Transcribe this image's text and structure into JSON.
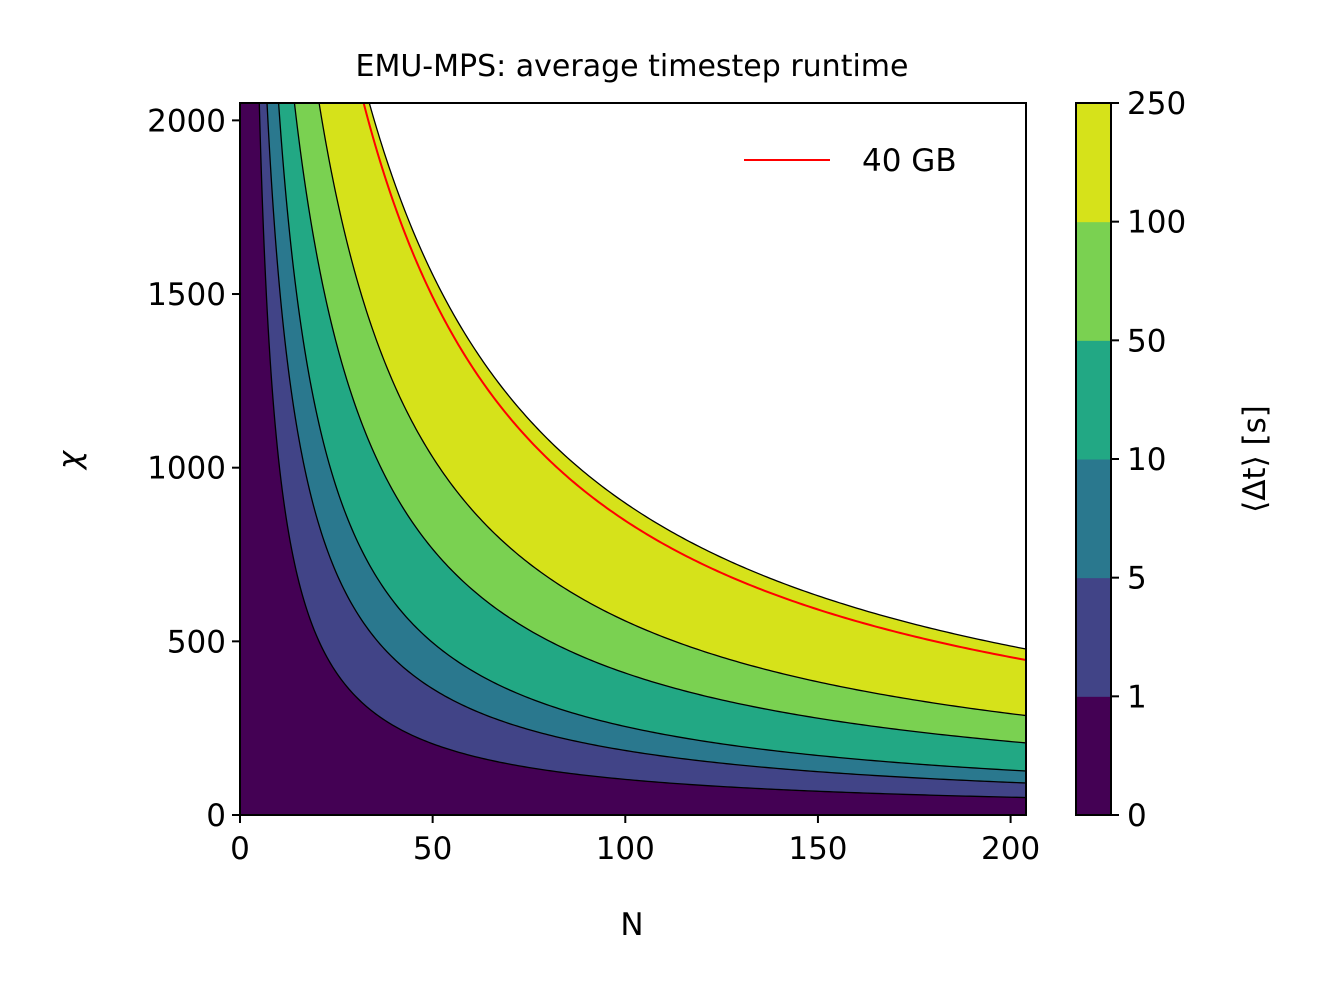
{
  "chart_data": {
    "type": "contour",
    "title": "EMU-MPS: average timestep runtime",
    "xlabel": "N",
    "ylabel": "χ",
    "xlim": [
      0,
      204
    ],
    "ylim": [
      0,
      2050
    ],
    "xticks": [
      0,
      50,
      100,
      150,
      200
    ],
    "yticks": [
      0,
      500,
      1000,
      1500,
      2000
    ],
    "colorbar": {
      "label": "⟨Δt⟩ [s]",
      "levels": [
        "0",
        "1",
        "5",
        "10",
        "50",
        "100",
        "250"
      ],
      "colors": [
        "#440154",
        "#414487",
        "#2a788e",
        "#22a884",
        "#7ad151",
        "#d6e21a"
      ]
    },
    "contour_boundaries": [
      {
        "level": "1",
        "chi_at_N": [
          [
            5,
            2050
          ],
          [
            50,
            212
          ],
          [
            100,
            105
          ],
          [
            150,
            70
          ],
          [
            204,
            46
          ]
        ]
      },
      {
        "level": "5",
        "chi_at_N": [
          [
            7,
            2050
          ],
          [
            50,
            380
          ],
          [
            100,
            190
          ],
          [
            150,
            127
          ],
          [
            204,
            88
          ]
        ]
      },
      {
        "level": "10",
        "chi_at_N": [
          [
            10,
            2050
          ],
          [
            50,
            510
          ],
          [
            100,
            255
          ],
          [
            150,
            170
          ],
          [
            204,
            125
          ]
        ]
      },
      {
        "level": "50",
        "chi_at_N": [
          [
            14,
            2050
          ],
          [
            50,
            800
          ],
          [
            100,
            412
          ],
          [
            150,
            275
          ],
          [
            204,
            205
          ]
        ]
      },
      {
        "level": "100",
        "chi_at_N": [
          [
            20,
            2050
          ],
          [
            50,
            1110
          ],
          [
            100,
            560
          ],
          [
            150,
            375
          ],
          [
            204,
            280
          ]
        ]
      },
      {
        "level": "250",
        "chi_at_N": [
          [
            30,
            2050
          ],
          [
            50,
            1780
          ],
          [
            100,
            900
          ],
          [
            150,
            610
          ],
          [
            204,
            470
          ]
        ]
      }
    ],
    "series": [
      {
        "name": "40 GB",
        "color": "#ff0000",
        "chi_at_N": [
          [
            29,
            2050
          ],
          [
            50,
            1700
          ],
          [
            100,
            865
          ],
          [
            150,
            580
          ],
          [
            204,
            428
          ]
        ]
      }
    ],
    "legend": {
      "placement": "upper-right",
      "entries": [
        "40 GB"
      ]
    }
  }
}
